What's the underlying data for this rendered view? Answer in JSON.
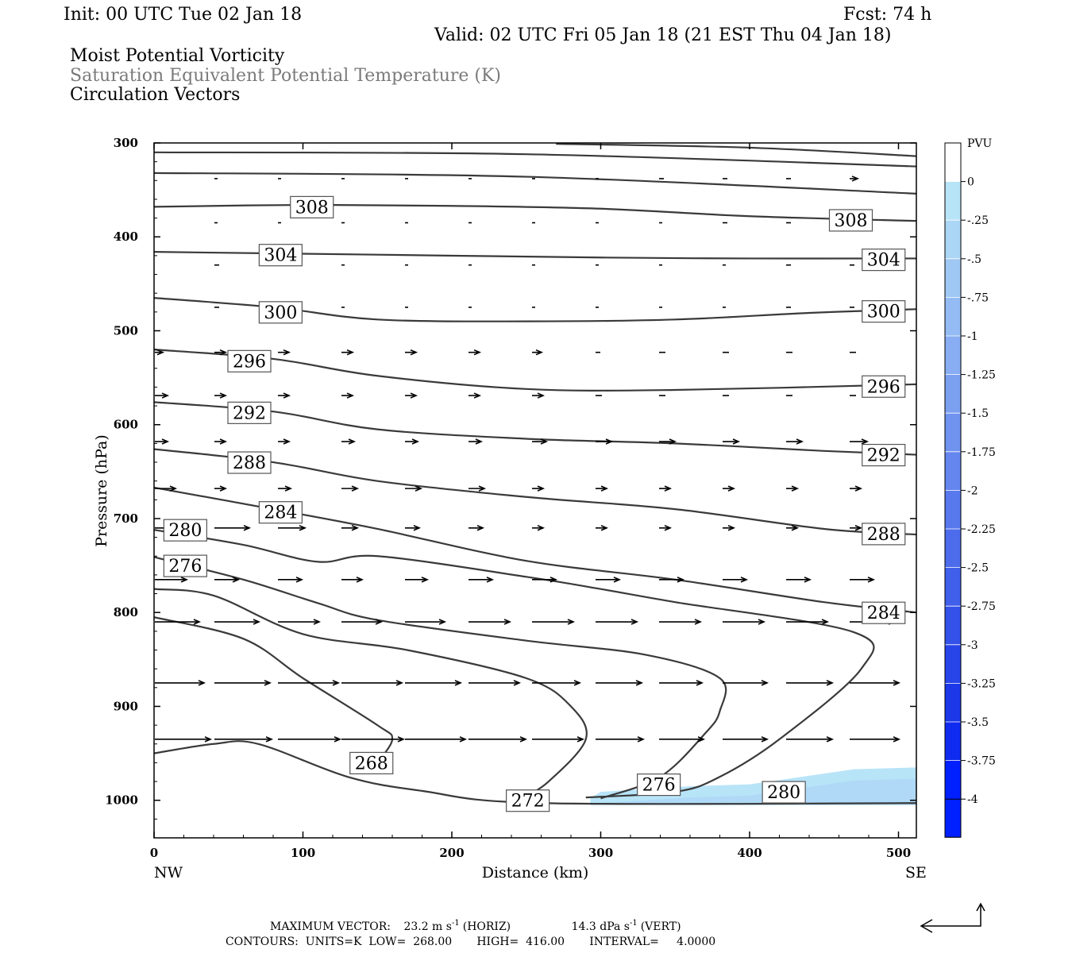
{
  "header": {
    "init": "Init: 00 UTC Tue 02 Jan 18",
    "fcst": "Fcst:   74 h",
    "valid": "Valid: 02 UTC Fri 05 Jan 18 (21 EST Thu 04 Jan 18)",
    "field1": "Moist Potential Vorticity",
    "field2": "Saturation Equivalent Potential Temperature (K)",
    "field3": "Circulation Vectors"
  },
  "footer": {
    "max_vector_label": "MAXIMUM VECTOR:",
    "horiz_value": "23.2 m s",
    "horiz_unit": "(HORIZ)",
    "vert_value": "14.3 dPa s",
    "vert_unit": "(VERT)",
    "exponent": "-1",
    "contours": "CONTOURS:  UNITS=K  LOW=  268.00       HIGH=  416.00       INTERVAL=     4.0000"
  },
  "chart_data": {
    "type": "cross-section",
    "xlabel": "Distance (km)",
    "ylabel": "Pressure (hPa)",
    "xlim": [
      0,
      512
    ],
    "ylim": [
      1040,
      300
    ],
    "x_ticks": [
      0,
      100,
      200,
      300,
      400,
      500
    ],
    "y_ticks": [
      300,
      400,
      500,
      600,
      700,
      800,
      900,
      1000
    ],
    "x_end_labels": {
      "left": "NW",
      "right": "SE"
    },
    "colorbar": {
      "unit": "PVU",
      "ticks": [
        "0",
        "-.25",
        "-.5",
        "-.75",
        "-1",
        "-1.25",
        "-1.5",
        "-1.75",
        "-2",
        "-2.25",
        "-2.5",
        "-2.75",
        "-3",
        "-3.25",
        "-3.5",
        "-3.75",
        "-4"
      ],
      "colors": [
        "#ffffff",
        "#b8e4f8",
        "#acd6f6",
        "#a0c8f4",
        "#94bbf3",
        "#88adf2",
        "#7ca0f0",
        "#7093ef",
        "#6486ee",
        "#5879ed",
        "#4c6cec",
        "#405feb",
        "#3452ea",
        "#2845e9",
        "#1c38e8",
        "#102bf0",
        "#0020ff"
      ]
    },
    "theta_contours": [
      {
        "level": 308,
        "points": [
          [
            0,
            368
          ],
          [
            100,
            366
          ],
          [
            200,
            367
          ],
          [
            300,
            370
          ],
          [
            400,
            378
          ],
          [
            512,
            383
          ]
        ],
        "labels": [
          [
            106,
            368
          ],
          [
            468,
            382
          ]
        ]
      },
      {
        "level": 304,
        "points": [
          [
            0,
            416
          ],
          [
            150,
            419
          ],
          [
            300,
            422
          ],
          [
            400,
            423
          ],
          [
            512,
            423
          ]
        ],
        "labels": [
          [
            85,
            419
          ],
          [
            490,
            424
          ]
        ]
      },
      {
        "level": 300,
        "points": [
          [
            0,
            465
          ],
          [
            80,
            475
          ],
          [
            150,
            488
          ],
          [
            250,
            490
          ],
          [
            350,
            488
          ],
          [
            440,
            481
          ],
          [
            512,
            477
          ]
        ],
        "labels": [
          [
            85,
            480
          ],
          [
            490,
            479
          ]
        ]
      },
      {
        "level": 296,
        "points": [
          [
            0,
            520
          ],
          [
            80,
            530
          ],
          [
            150,
            548
          ],
          [
            250,
            562
          ],
          [
            350,
            563
          ],
          [
            512,
            557
          ]
        ],
        "labels": [
          [
            64,
            532
          ],
          [
            490,
            559
          ]
        ]
      },
      {
        "level": 292,
        "points": [
          [
            0,
            576
          ],
          [
            80,
            586
          ],
          [
            150,
            605
          ],
          [
            250,
            615
          ],
          [
            350,
            620
          ],
          [
            450,
            628
          ],
          [
            512,
            632
          ]
        ],
        "labels": [
          [
            64,
            587
          ],
          [
            490,
            632
          ]
        ]
      },
      {
        "level": 288,
        "points": [
          [
            0,
            626
          ],
          [
            80,
            640
          ],
          [
            150,
            660
          ],
          [
            250,
            677
          ],
          [
            350,
            690
          ],
          [
            450,
            711
          ],
          [
            512,
            717
          ]
        ],
        "labels": [
          [
            64,
            640
          ],
          [
            490,
            716
          ]
        ]
      },
      {
        "level": 284,
        "points": [
          [
            0,
            667
          ],
          [
            80,
            690
          ],
          [
            150,
            711
          ],
          [
            250,
            745
          ],
          [
            350,
            765
          ],
          [
            450,
            789
          ],
          [
            512,
            800
          ]
        ],
        "labels": [
          [
            85,
            693
          ],
          [
            490,
            800
          ]
        ]
      },
      {
        "level": 280,
        "points": [
          [
            0,
            712
          ],
          [
            60,
            728
          ],
          [
            110,
            746
          ],
          [
            150,
            740
          ],
          [
            250,
            762
          ],
          [
            300,
            775
          ],
          [
            350,
            789
          ],
          [
            470,
            821
          ],
          [
            475,
            860
          ],
          [
            420,
            935
          ],
          [
            380,
            975
          ],
          [
            350,
            991
          ],
          [
            290,
            997
          ]
        ],
        "labels": [
          [
            21,
            712
          ],
          [
            423,
            991
          ]
        ]
      },
      {
        "level": 276,
        "points": [
          [
            0,
            741
          ],
          [
            60,
            765
          ],
          [
            110,
            790
          ],
          [
            150,
            808
          ],
          [
            250,
            830
          ],
          [
            330,
            845
          ],
          [
            380,
            870
          ],
          [
            380,
            905
          ],
          [
            370,
            929
          ],
          [
            340,
            975
          ],
          [
            300,
            998
          ]
        ],
        "labels": [
          [
            21,
            750
          ],
          [
            339,
            983
          ]
        ]
      },
      {
        "level": 272,
        "points": [
          [
            0,
            775
          ],
          [
            40,
            782
          ],
          [
            100,
            823
          ],
          [
            170,
            840
          ],
          [
            250,
            870
          ],
          [
            280,
            900
          ],
          [
            290,
            935
          ],
          [
            265,
            980
          ],
          [
            245,
            1000
          ]
        ],
        "labels": [
          [
            251,
            1000
          ]
        ]
      },
      {
        "level": 268,
        "points": [
          [
            0,
            805
          ],
          [
            60,
            828
          ],
          [
            100,
            870
          ],
          [
            150,
            920
          ],
          [
            160,
            935
          ],
          [
            150,
            960
          ]
        ],
        "labels": [
          [
            146,
            960
          ]
        ]
      },
      {
        "level": 264,
        "points": [
          [
            0,
            950
          ],
          [
            40,
            940
          ],
          [
            70,
            940
          ],
          [
            130,
            975
          ],
          [
            180,
            990
          ],
          [
            260,
            1003
          ],
          [
            512,
            1003
          ]
        ],
        "labels": []
      }
    ],
    "mpv_region": {
      "level": "-.25",
      "points": [
        [
          293,
          998
        ],
        [
          300,
          991
        ],
        [
          360,
          985
        ],
        [
          400,
          983
        ],
        [
          470,
          967
        ],
        [
          512,
          965
        ],
        [
          512,
          1005
        ],
        [
          293,
          1005
        ]
      ]
    },
    "vectors": [
      [
        0,
        300,
        [
          [
            270,
            208
          ],
          [
            350,
            211
          ]
        ]
      ],
      [
        0,
        0,
        [
          [
            0,
            0
          ],
          [
            0,
            0
          ]
        ]
      ]
    ],
    "vector_rows": [
      {
        "p": 338,
        "x": [
          270,
          350,
          430,
          510,
          590,
          670,
          750,
          830,
          910,
          990,
          1070
        ],
        "len": [
          4,
          4,
          4,
          4,
          4,
          4,
          4,
          6,
          6,
          6,
          10
        ]
      },
      {
        "p": 385,
        "x": [
          270,
          350,
          430,
          510,
          590,
          670,
          750,
          830,
          910,
          990,
          1070
        ],
        "len": [
          4,
          4,
          4,
          4,
          4,
          4,
          4,
          4,
          6,
          6,
          6
        ]
      },
      {
        "p": 430,
        "x": [
          270,
          350,
          430,
          510,
          590,
          670,
          750,
          830,
          910,
          990,
          1070
        ],
        "len": [
          6,
          4,
          4,
          4,
          4,
          4,
          4,
          4,
          4,
          6,
          6
        ]
      },
      {
        "p": 475,
        "x": [
          270,
          350,
          430,
          510,
          590,
          670,
          750,
          830,
          910,
          990,
          1070
        ],
        "len": [
          6,
          4,
          4,
          4,
          4,
          4,
          4,
          4,
          4,
          6,
          6
        ]
      },
      {
        "p": 523,
        "x": [
          195,
          270,
          350,
          430,
          510,
          590,
          670,
          750,
          830,
          910,
          990,
          1070
        ],
        "len": [
          10,
          14,
          14,
          14,
          14,
          14,
          12,
          6,
          8,
          8,
          8,
          8
        ]
      },
      {
        "p": 569,
        "x": [
          195,
          270,
          350,
          430,
          510,
          590,
          670,
          750,
          830,
          910,
          990,
          1070
        ],
        "len": [
          16,
          14,
          14,
          14,
          14,
          14,
          14,
          8,
          8,
          8,
          8,
          8
        ]
      },
      {
        "p": 618,
        "x": [
          195,
          270,
          350,
          430,
          510,
          590,
          670,
          750,
          830,
          910,
          990,
          1070
        ],
        "len": [
          16,
          14,
          14,
          16,
          16,
          16,
          18,
          20,
          20,
          20,
          20,
          22
        ]
      },
      {
        "p": 668,
        "x": [
          195,
          270,
          350,
          430,
          510,
          590,
          670,
          750,
          830,
          910,
          990,
          1070
        ],
        "len": [
          26,
          14,
          16,
          20,
          20,
          20,
          14,
          14,
          14,
          14,
          14,
          14
        ]
      },
      {
        "p": 710,
        "x": [
          195,
          270,
          350,
          430,
          510,
          590,
          670,
          750,
          830,
          910,
          990,
          1070
        ],
        "len": [
          32,
          44,
          34,
          20,
          18,
          18,
          14,
          14,
          14,
          14,
          14,
          14
        ]
      },
      {
        "p": 765,
        "x": [
          195,
          270,
          350,
          430,
          510,
          590,
          670,
          750,
          830,
          910,
          990,
          1070
        ],
        "len": [
          40,
          30,
          30,
          26,
          28,
          30,
          30,
          30,
          30,
          30,
          30,
          30
        ]
      },
      {
        "p": 810,
        "x": [
          195,
          270,
          350,
          430,
          510,
          590,
          670,
          750,
          830,
          910,
          990,
          1070
        ],
        "len": [
          56,
          56,
          52,
          50,
          50,
          52,
          52,
          52,
          52,
          52,
          52,
          56
        ]
      },
      {
        "p": 875,
        "x": [
          195,
          270,
          350,
          430,
          510,
          590,
          670,
          750,
          830,
          910,
          990,
          1070
        ],
        "len": [
          62,
          70,
          76,
          76,
          70,
          64,
          60,
          58,
          54,
          56,
          58,
          62
        ]
      },
      {
        "p": 935,
        "x": [
          195,
          270,
          350,
          430,
          510,
          590,
          670,
          750,
          830,
          910,
          990,
          1070
        ],
        "len": [
          70,
          72,
          78,
          78,
          76,
          72,
          64,
          60,
          56,
          56,
          58,
          62
        ]
      }
    ]
  }
}
